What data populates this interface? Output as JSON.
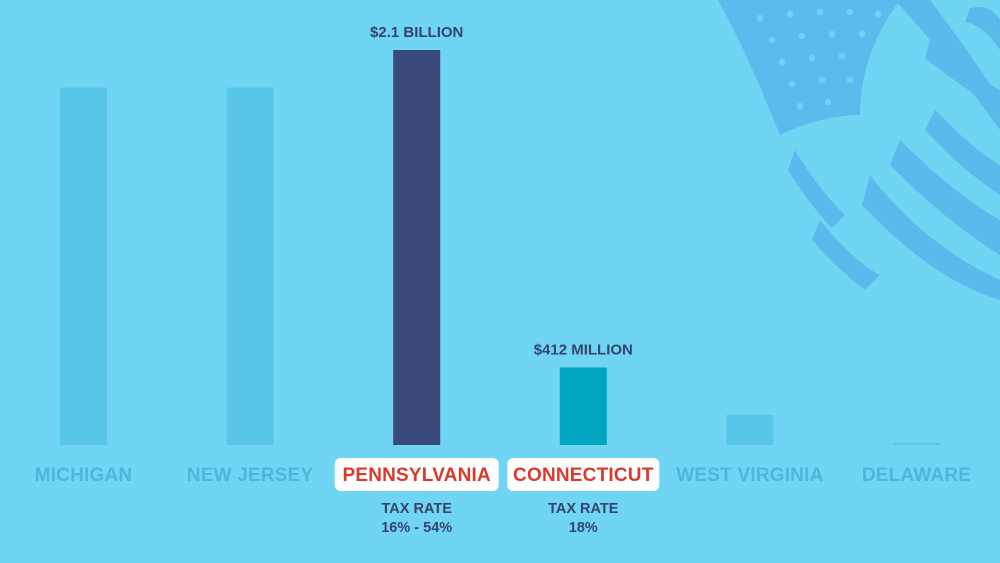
{
  "colors": {
    "background": "#6fd5f3",
    "bar_default": "#58c6e6",
    "bar_highlight_dark": "#3a4a7c",
    "bar_highlight_teal": "#00a5bf",
    "label_muted": "#4fb6d9",
    "label_dark": "#36446f",
    "label_red": "#d93a2b",
    "pill": "#ffffff",
    "flag": "#5cb8ec"
  },
  "decoration": {
    "flag_icon": "american-flag-icon"
  },
  "chart_data": {
    "type": "bar",
    "title": "",
    "xlabel": "",
    "ylabel": "",
    "ylim": [
      0,
      2.1
    ],
    "grid": false,
    "unit": "USD billions",
    "categories": [
      "MICHIGAN",
      "NEW JERSEY",
      "PENNSYLVANIA",
      "CONNECTICUT",
      "WEST VIRGINIA",
      "DELAWARE"
    ],
    "values": [
      1.9,
      1.9,
      2.1,
      0.412,
      0.16,
      0.01
    ],
    "highlighted": [
      false,
      false,
      true,
      true,
      false,
      false
    ],
    "bar_colors": [
      "#58c6e6",
      "#58c6e6",
      "#3a4a7c",
      "#00a5bf",
      "#58c6e6",
      "#58c6e6"
    ],
    "value_labels": [
      "",
      "",
      "$2.1 BILLION",
      "$412 MILLION",
      "",
      ""
    ],
    "sub_labels": [
      [],
      [],
      [
        "TAX RATE",
        "16% - 54%"
      ],
      [
        "TAX RATE",
        "18%"
      ],
      [],
      []
    ]
  }
}
